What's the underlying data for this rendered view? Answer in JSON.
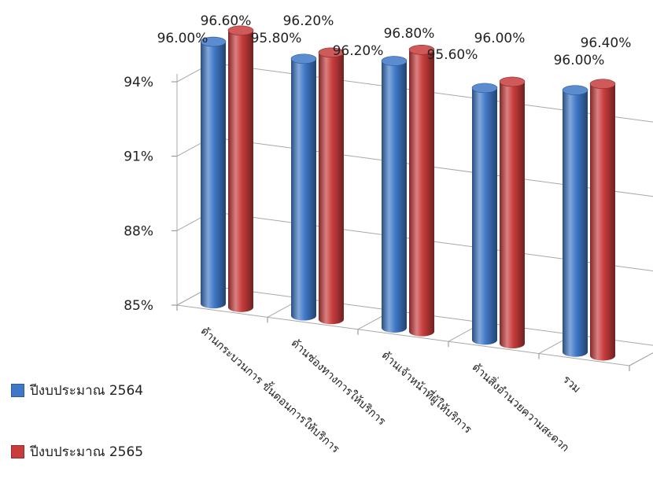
{
  "chart_data": {
    "type": "bar",
    "style": "3d-cylinder",
    "categories": [
      "ด้านกระบวนการ ขั้นตอนการให้บริการ",
      "ด้านช่องทางการให้บริการ",
      "ด้านเจ้าหน้าที่ผู้ให้บริการ",
      "ด้านสิ่งอำนวยความสะดวก",
      "รวม"
    ],
    "series": [
      {
        "name": "ปีงบประมาณ 2564",
        "color": "#3f78c8",
        "values": [
          96.0,
          95.8,
          96.2,
          95.6,
          96.0
        ],
        "labels": [
          "96.00%",
          "95.80%",
          "96.20%",
          "95.60%",
          "96.00%"
        ]
      },
      {
        "name": "ปีงบประมาณ 2565",
        "color": "#c83c3c",
        "values": [
          96.6,
          96.2,
          96.8,
          96.0,
          96.4
        ],
        "labels": [
          "96.60%",
          "96.20%",
          "96.80%",
          "96.00%",
          "96.40%"
        ]
      }
    ],
    "yticks": [
      "85%",
      "88%",
      "91%",
      "94%"
    ],
    "ylim": [
      85,
      97
    ],
    "grid": true,
    "legend": "left-bottom"
  }
}
